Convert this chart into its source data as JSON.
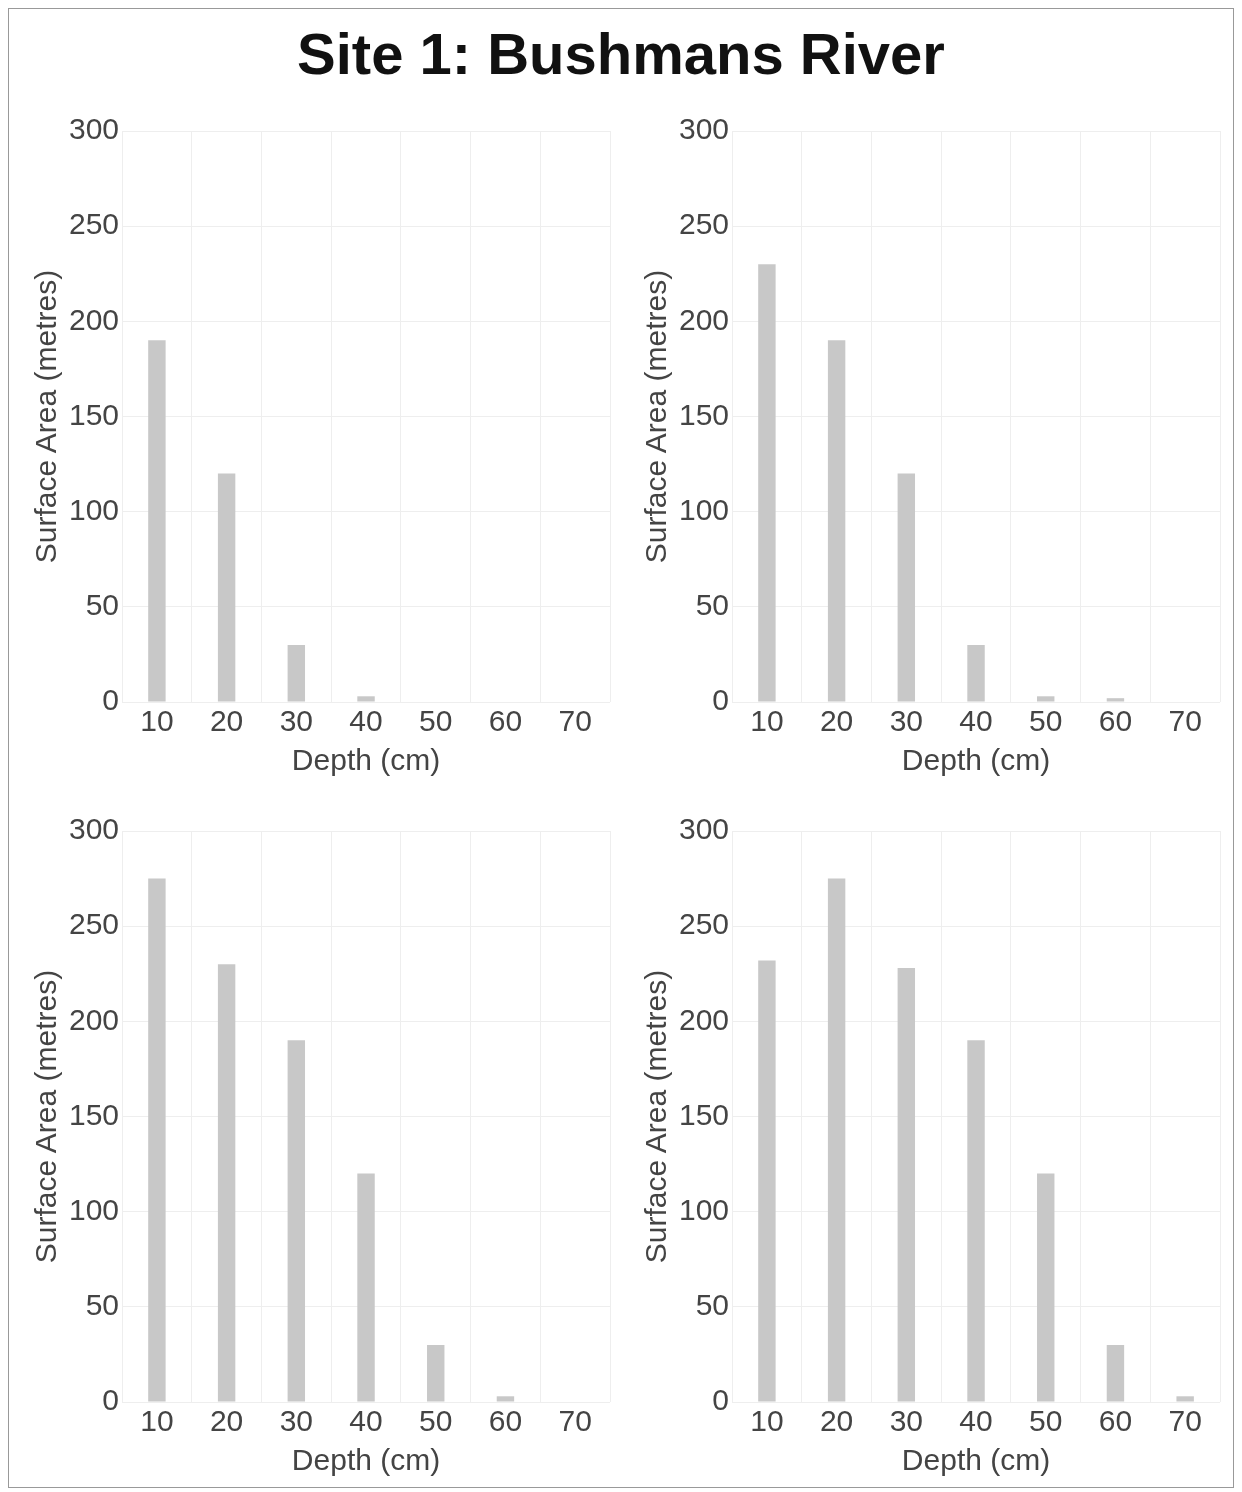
{
  "chart_data": [
    {
      "type": "bar",
      "title": "Site 1: Bushmans River",
      "categories": [
        "10",
        "20",
        "30",
        "40",
        "50",
        "60",
        "70"
      ],
      "values": [
        190,
        120,
        30,
        3,
        null,
        null,
        null
      ],
      "color": "#c8c8c8",
      "xlabel": "Depth (cm)",
      "ylabel": "Surface Area (metres)",
      "ylim": [
        0,
        300
      ],
      "yticks": [
        0,
        50,
        100,
        150,
        200,
        250,
        300
      ],
      "grid": true
    },
    {
      "type": "bar",
      "categories": [
        "10",
        "20",
        "30",
        "40",
        "50",
        "60",
        "70"
      ],
      "values": [
        230,
        190,
        120,
        30,
        3,
        2,
        null
      ],
      "color": "#c8c8c8",
      "xlabel": "Depth (cm)",
      "ylabel": "Surface Area (metres)",
      "ylim": [
        0,
        300
      ],
      "yticks": [
        0,
        50,
        100,
        150,
        200,
        250,
        300
      ],
      "grid": true
    },
    {
      "type": "bar",
      "categories": [
        "10",
        "20",
        "30",
        "40",
        "50",
        "60",
        "70"
      ],
      "values": [
        275,
        230,
        190,
        120,
        30,
        3,
        null
      ],
      "color": "#c8c8c8",
      "xlabel": "Depth (cm)",
      "ylabel": "Surface Area (metres)",
      "ylim": [
        0,
        300
      ],
      "yticks": [
        0,
        50,
        100,
        150,
        200,
        250,
        300
      ],
      "grid": true
    },
    {
      "type": "bar",
      "categories": [
        "10",
        "20",
        "30",
        "40",
        "50",
        "60",
        "70"
      ],
      "values": [
        232,
        275,
        228,
        190,
        120,
        30,
        3
      ],
      "color": "#c8c8c8",
      "xlabel": "Depth (cm)",
      "ylabel": "Surface Area (metres)",
      "ylim": [
        0,
        300
      ],
      "yticks": [
        0,
        50,
        100,
        150,
        200,
        250,
        300
      ],
      "grid": true
    }
  ]
}
